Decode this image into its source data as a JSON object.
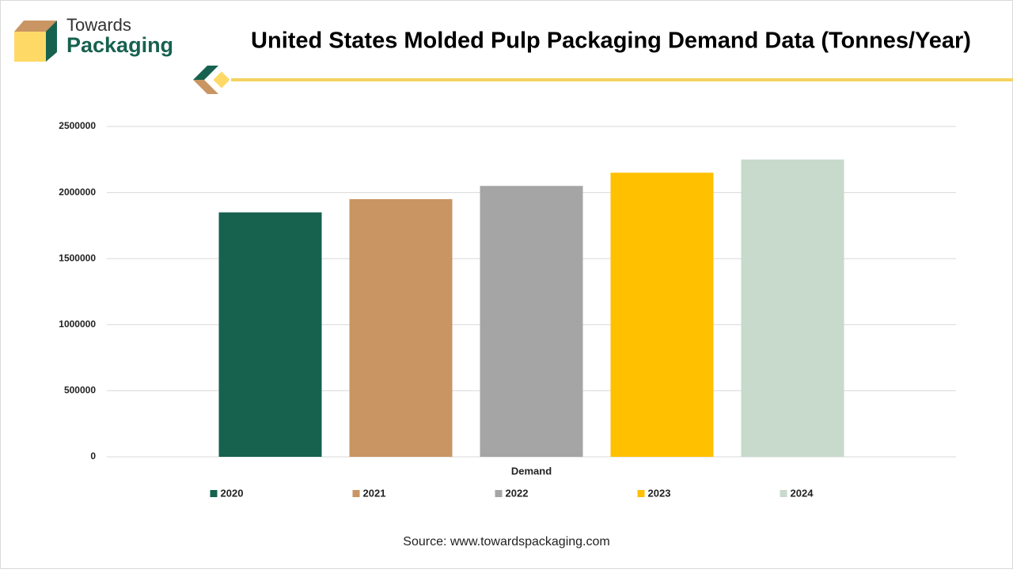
{
  "logo": {
    "line1": "Towards",
    "line2": "Packaging"
  },
  "chart_data": {
    "type": "bar",
    "title": "United States Molded Pulp Packaging Demand Data (Tonnes/Year)",
    "x_label": "Demand",
    "categories": [
      "Demand"
    ],
    "series": [
      {
        "name": "2020",
        "color": "#17614f",
        "values": [
          1850000
        ]
      },
      {
        "name": "2021",
        "color": "#c99563",
        "values": [
          1950000
        ]
      },
      {
        "name": "2022",
        "color": "#a5a5a5",
        "values": [
          2050000
        ]
      },
      {
        "name": "2023",
        "color": "#ffc000",
        "values": [
          2150000
        ]
      },
      {
        "name": "2024",
        "color": "#c7dacb",
        "values": [
          2250000
        ]
      }
    ],
    "ylim": [
      0,
      2500000
    ],
    "yticks": [
      0,
      500000,
      1000000,
      1500000,
      2000000,
      2500000
    ],
    "grid": true,
    "legend": "bottom"
  },
  "source": "Source: www.towardspackaging.com"
}
